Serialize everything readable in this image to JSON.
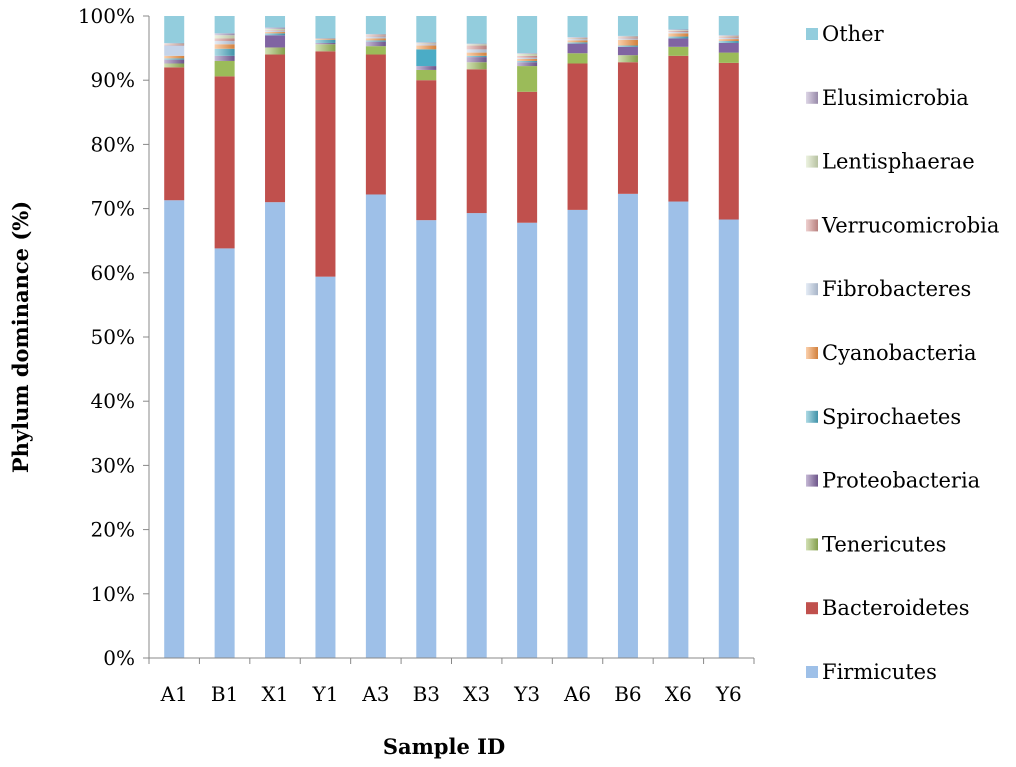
{
  "chart_data": {
    "type": "bar",
    "stacked": true,
    "title": "",
    "xlabel": "Sample ID",
    "ylabel": "Phylum dominance (%)",
    "ylim": [
      0,
      100
    ],
    "ytick_labels": [
      "0%",
      "10%",
      "20%",
      "30%",
      "40%",
      "50%",
      "60%",
      "70%",
      "80%",
      "90%",
      "100%"
    ],
    "grid": false,
    "legend_position": "right",
    "categories": [
      "A1",
      "B1",
      "X1",
      "Y1",
      "A3",
      "B3",
      "X3",
      "Y3",
      "A6",
      "B6",
      "X6",
      "Y6"
    ],
    "series": [
      {
        "name": "Firmicutes",
        "color": "#9ec0e8",
        "values": [
          71.3,
          63.8,
          71.0,
          59.4,
          72.2,
          68.2,
          69.3,
          67.8,
          69.8,
          72.3,
          71.1,
          68.3
        ]
      },
      {
        "name": "Bacteroidetes",
        "color": "#c0504d",
        "values": [
          20.7,
          26.8,
          23.0,
          35.1,
          21.8,
          21.8,
          22.4,
          20.4,
          22.8,
          20.5,
          22.7,
          24.4
        ]
      },
      {
        "name": "Tenericutes",
        "color": "#9bbb59",
        "values": [
          0.6,
          2.4,
          1.1,
          1.1,
          1.3,
          1.6,
          1.1,
          4.0,
          1.6,
          1.1,
          1.4,
          1.6
        ]
      },
      {
        "name": "Proteobacteria",
        "color": "#8064a2",
        "values": [
          0.6,
          0.8,
          1.9,
          0.2,
          0.7,
          0.6,
          0.8,
          0.6,
          1.5,
          1.3,
          1.3,
          1.5
        ]
      },
      {
        "name": "Spirochaetes",
        "color": "#4bacc6",
        "values": [
          0.2,
          1.1,
          0.3,
          0.5,
          0.2,
          2.6,
          0.2,
          0.2,
          0.2,
          0.2,
          0.3,
          0.3
        ]
      },
      {
        "name": "Cyanobacteria",
        "color": "#f79646",
        "values": [
          0.4,
          0.7,
          0.2,
          0.1,
          0.3,
          0.6,
          0.5,
          0.3,
          0.3,
          0.9,
          0.5,
          0.3
        ]
      },
      {
        "name": "Fibrobacteres",
        "color": "#c5d4ea",
        "values": [
          1.6,
          0.5,
          0.2,
          0.0,
          0.3,
          0.2,
          0.5,
          0.2,
          0.2,
          0.2,
          0.2,
          0.2
        ]
      },
      {
        "name": "Verrucomicrobia",
        "color": "#d99694",
        "values": [
          0.2,
          0.4,
          0.1,
          0.1,
          0.2,
          0.1,
          0.6,
          0.3,
          0.1,
          0.2,
          0.2,
          0.2
        ]
      },
      {
        "name": "Lentisphaerae",
        "color": "#d7e4bd",
        "values": [
          0.1,
          0.5,
          0.2,
          0.0,
          0.1,
          0.1,
          0.2,
          0.3,
          0.1,
          0.1,
          0.1,
          0.1
        ]
      },
      {
        "name": "Elusimicrobia",
        "color": "#b3a2c7",
        "values": [
          0.1,
          0.3,
          0.2,
          0.0,
          0.1,
          0.1,
          0.1,
          0.1,
          0.1,
          0.1,
          0.1,
          0.1
        ]
      },
      {
        "name": "Other",
        "color": "#93cddd",
        "values": [
          4.2,
          2.7,
          2.0,
          3.5,
          3.1,
          4.2,
          4.3,
          5.8,
          3.4,
          3.4,
          2.3,
          3.3
        ]
      }
    ]
  }
}
